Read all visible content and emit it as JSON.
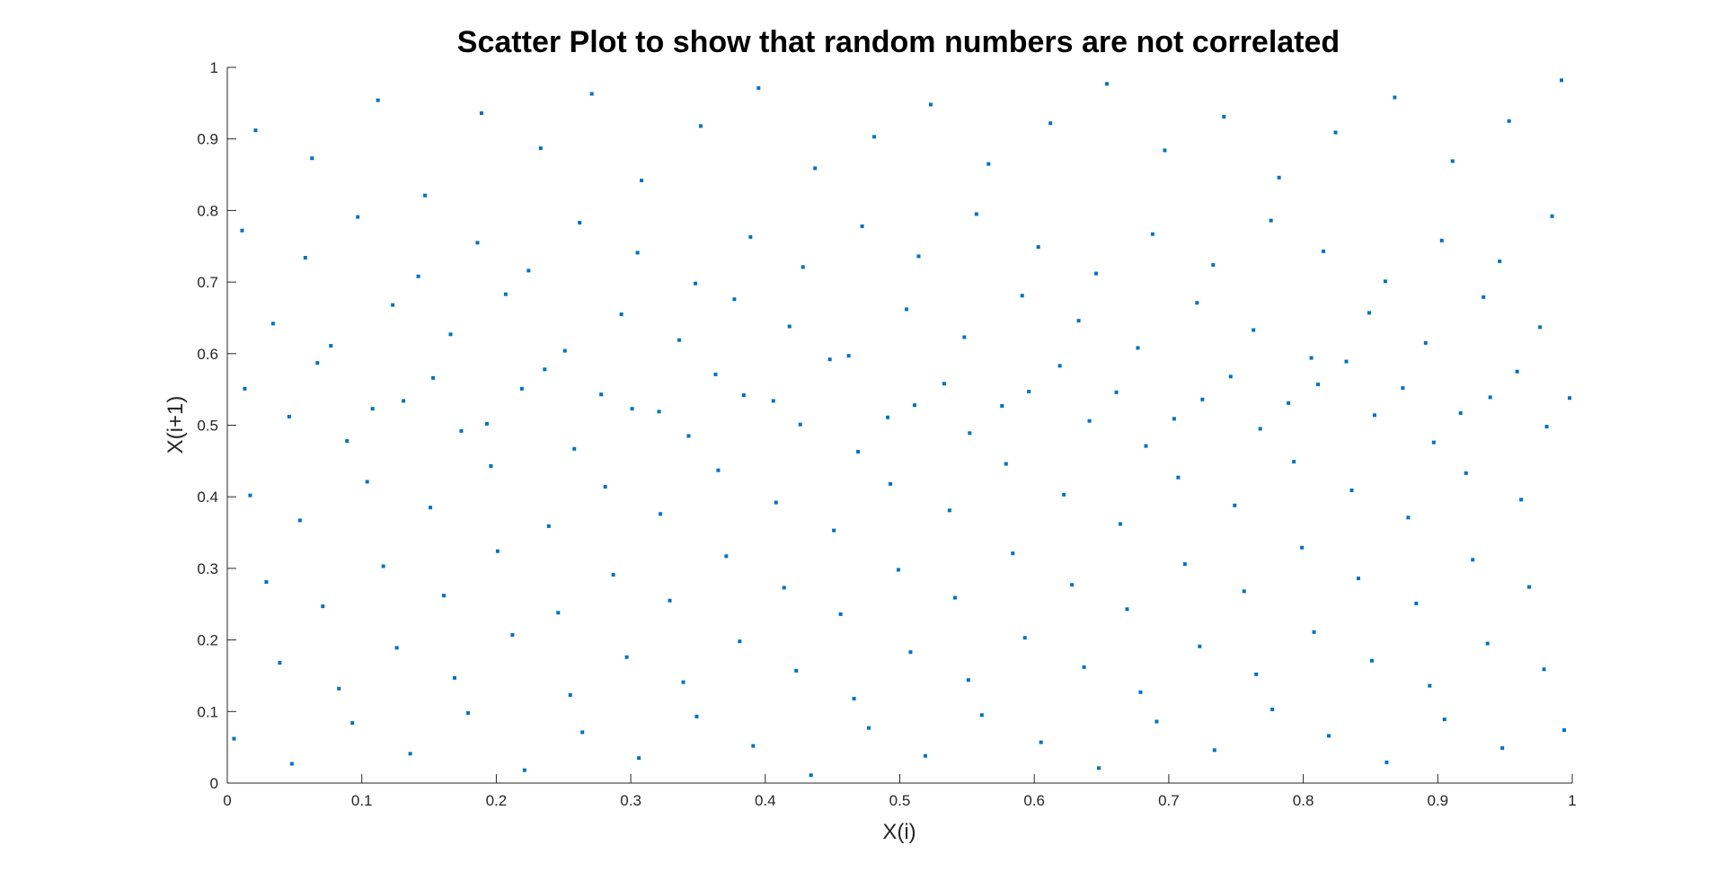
{
  "chart_data": {
    "type": "scatter",
    "title": "Scatter Plot to show that random numbers are not correlated",
    "xlabel": "X(i)",
    "ylabel": "X(i+1)",
    "xlim": [
      0,
      1
    ],
    "ylim": [
      0,
      1
    ],
    "xticks": [
      "0",
      "0.1",
      "0.2",
      "0.3",
      "0.4",
      "0.5",
      "0.6",
      "0.7",
      "0.8",
      "0.9",
      "1"
    ],
    "yticks": [
      "0",
      "0.1",
      "0.2",
      "0.3",
      "0.4",
      "0.5",
      "0.6",
      "0.7",
      "0.8",
      "0.9",
      "1"
    ],
    "grid": false,
    "marker_color": "#0072BD",
    "series": [
      {
        "name": "",
        "x": [
          0.021,
          0.063,
          0.112,
          0.147,
          0.189,
          0.233,
          0.271,
          0.308,
          0.352,
          0.395,
          0.437,
          0.481,
          0.523,
          0.566,
          0.612,
          0.654,
          0.697,
          0.741,
          0.782,
          0.824,
          0.868,
          0.911,
          0.953,
          0.992,
          0.011,
          0.058,
          0.097,
          0.142,
          0.186,
          0.224,
          0.262,
          0.305,
          0.348,
          0.389,
          0.428,
          0.472,
          0.514,
          0.557,
          0.603,
          0.646,
          0.688,
          0.733,
          0.776,
          0.815,
          0.861,
          0.903,
          0.946,
          0.985,
          0.034,
          0.077,
          0.123,
          0.166,
          0.207,
          0.251,
          0.293,
          0.336,
          0.377,
          0.418,
          0.462,
          0.505,
          0.548,
          0.591,
          0.633,
          0.677,
          0.721,
          0.763,
          0.806,
          0.849,
          0.891,
          0.934,
          0.976,
          0.046,
          0.089,
          0.131,
          0.174,
          0.219,
          0.258,
          0.301,
          0.343,
          0.384,
          0.426,
          0.469,
          0.511,
          0.552,
          0.596,
          0.641,
          0.683,
          0.725,
          0.768,
          0.811,
          0.853,
          0.897,
          0.939,
          0.981,
          0.017,
          0.054,
          0.104,
          0.151,
          0.196,
          0.239,
          0.281,
          0.322,
          0.365,
          0.408,
          0.451,
          0.493,
          0.537,
          0.579,
          0.622,
          0.664,
          0.707,
          0.749,
          0.793,
          0.836,
          0.878,
          0.921,
          0.962,
          0.029,
          0.071,
          0.116,
          0.161,
          0.201,
          0.246,
          0.287,
          0.329,
          0.371,
          0.414,
          0.456,
          0.499,
          0.541,
          0.584,
          0.628,
          0.669,
          0.712,
          0.756,
          0.799,
          0.841,
          0.884,
          0.926,
          0.968,
          0.039,
          0.083,
          0.126,
          0.169,
          0.212,
          0.255,
          0.297,
          0.339,
          0.381,
          0.423,
          0.466,
          0.508,
          0.551,
          0.593,
          0.637,
          0.679,
          0.723,
          0.765,
          0.808,
          0.851,
          0.894,
          0.937,
          0.979,
          0.005,
          0.048,
          0.093,
          0.136,
          0.179,
          0.221,
          0.264,
          0.306,
          0.349,
          0.391,
          0.434,
          0.477,
          0.519,
          0.561,
          0.605,
          0.648,
          0.691,
          0.734,
          0.777,
          0.819,
          0.862,
          0.905,
          0.948,
          0.994,
          0.013,
          0.067,
          0.108,
          0.153,
          0.193,
          0.236,
          0.278,
          0.321,
          0.363,
          0.406,
          0.448,
          0.491,
          0.533,
          0.576,
          0.619,
          0.661,
          0.704,
          0.746,
          0.789,
          0.832,
          0.874,
          0.917,
          0.959,
          0.998
        ],
        "y": [
          0.912,
          0.873,
          0.954,
          0.821,
          0.936,
          0.887,
          0.963,
          0.842,
          0.918,
          0.971,
          0.859,
          0.903,
          0.948,
          0.865,
          0.922,
          0.977,
          0.884,
          0.931,
          0.846,
          0.909,
          0.958,
          0.869,
          0.925,
          0.982,
          0.772,
          0.734,
          0.791,
          0.708,
          0.755,
          0.716,
          0.783,
          0.741,
          0.698,
          0.763,
          0.721,
          0.778,
          0.736,
          0.795,
          0.749,
          0.712,
          0.767,
          0.724,
          0.786,
          0.743,
          0.701,
          0.758,
          0.729,
          0.792,
          0.642,
          0.611,
          0.668,
          0.627,
          0.683,
          0.604,
          0.655,
          0.619,
          0.676,
          0.638,
          0.597,
          0.662,
          0.623,
          0.681,
          0.646,
          0.608,
          0.671,
          0.633,
          0.594,
          0.657,
          0.615,
          0.679,
          0.637,
          0.512,
          0.478,
          0.534,
          0.492,
          0.551,
          0.467,
          0.523,
          0.485,
          0.542,
          0.501,
          0.463,
          0.528,
          0.489,
          0.547,
          0.506,
          0.471,
          0.536,
          0.495,
          0.557,
          0.514,
          0.476,
          0.539,
          0.498,
          0.402,
          0.367,
          0.421,
          0.385,
          0.443,
          0.359,
          0.414,
          0.376,
          0.437,
          0.392,
          0.353,
          0.418,
          0.381,
          0.446,
          0.403,
          0.362,
          0.427,
          0.388,
          0.449,
          0.409,
          0.371,
          0.433,
          0.396,
          0.281,
          0.247,
          0.303,
          0.262,
          0.324,
          0.238,
          0.291,
          0.255,
          0.317,
          0.273,
          0.236,
          0.298,
          0.259,
          0.321,
          0.277,
          0.243,
          0.306,
          0.268,
          0.329,
          0.286,
          0.251,
          0.312,
          0.274,
          0.168,
          0.132,
          0.189,
          0.147,
          0.207,
          0.123,
          0.176,
          0.141,
          0.198,
          0.157,
          0.118,
          0.183,
          0.144,
          0.203,
          0.162,
          0.127,
          0.191,
          0.152,
          0.211,
          0.171,
          0.136,
          0.195,
          0.159,
          0.062,
          0.027,
          0.084,
          0.041,
          0.098,
          0.018,
          0.071,
          0.035,
          0.093,
          0.052,
          0.011,
          0.077,
          0.038,
          0.095,
          0.057,
          0.021,
          0.086,
          0.046,
          0.103,
          0.066,
          0.029,
          0.089,
          0.049,
          0.074,
          0.551,
          0.587,
          0.523,
          0.566,
          0.502,
          0.578,
          0.543,
          0.519,
          0.571,
          0.534,
          0.592,
          0.511,
          0.558,
          0.527,
          0.583,
          0.546,
          0.509,
          0.568,
          0.531,
          0.589,
          0.552,
          0.517,
          0.575,
          0.538
        ]
      }
    ]
  }
}
